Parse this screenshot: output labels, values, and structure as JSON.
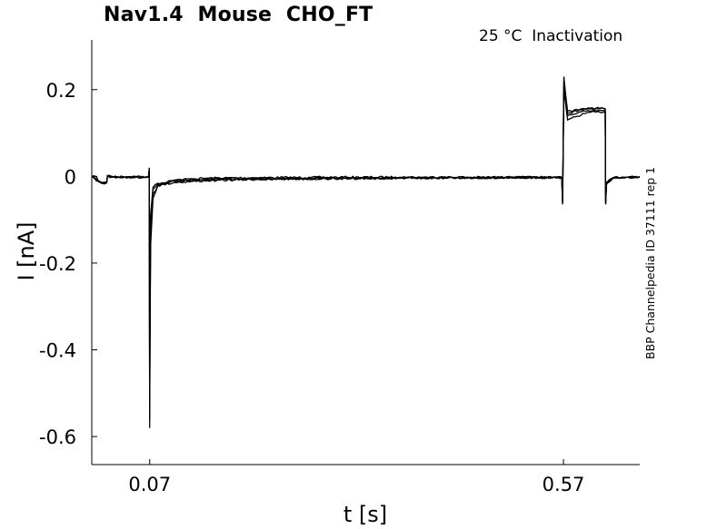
{
  "chart_data": {
    "type": "line",
    "title": "Nav1.4  Mouse  CHO_FT",
    "annotation": "25 °C  Inactivation",
    "side_note": "BBP Channelpedia ID 37111 rep 1",
    "xlabel": "t [s]",
    "ylabel": "I [nA]",
    "xlim": [
      0.0,
      0.6622
    ],
    "ylim": [
      -0.6646,
      0.3146
    ],
    "x_ticks": [
      0.07,
      0.57
    ],
    "x_tick_labels": [
      "0.07",
      "0.57"
    ],
    "y_ticks": [
      0.2,
      0,
      -0.2,
      -0.4,
      -0.6
    ],
    "y_tick_labels": [
      "0.2",
      "0",
      "-0.2",
      "-0.4",
      "-0.6"
    ],
    "grid": false,
    "box": "left-bottom",
    "line_color": "#000000",
    "series": [
      {
        "x": [
          0,
          0.006,
          0.008,
          0.012,
          0.018,
          0.019,
          0.022,
          0.04,
          0.0685,
          0.0695,
          0.07,
          0.0703,
          0.071,
          0.074,
          0.08,
          0.1,
          0.14,
          0.2,
          0.3,
          0.4,
          0.5,
          0.568,
          0.569,
          0.5705,
          0.575,
          0.6,
          0.6205,
          0.621,
          0.622,
          0.625,
          0.63,
          0.645,
          0.6622
        ],
        "values": [
          0,
          -0.002,
          -0.012,
          -0.016,
          -0.015,
          0.002,
          -0.003,
          -0.002,
          -0.002,
          0.02,
          -0.56,
          -0.42,
          -0.16,
          -0.05,
          -0.02,
          -0.008,
          -0.004,
          -0.003,
          -0.002,
          -0.002,
          -0.002,
          -0.003,
          -0.065,
          0.23,
          0.15,
          0.156,
          0.155,
          -0.065,
          -0.02,
          -0.008,
          -0.003,
          -0.002,
          -0.002
        ]
      },
      {
        "x": [
          0,
          0.008,
          0.012,
          0.018,
          0.019,
          0.04,
          0.0685,
          0.0695,
          0.07,
          0.0703,
          0.071,
          0.074,
          0.08,
          0.1,
          0.14,
          0.2,
          0.3,
          0.4,
          0.5,
          0.568,
          0.569,
          0.5705,
          0.575,
          0.6,
          0.6205,
          0.621,
          0.622,
          0.63,
          0.6622
        ],
        "values": [
          0,
          -0.01,
          -0.014,
          -0.013,
          0.001,
          -0.001,
          -0.001,
          0.015,
          -0.58,
          -0.4,
          -0.14,
          -0.04,
          -0.022,
          -0.014,
          -0.01,
          -0.007,
          -0.005,
          -0.004,
          -0.003,
          -0.003,
          -0.06,
          0.22,
          0.14,
          0.152,
          0.15,
          -0.06,
          -0.015,
          -0.004,
          -0.001
        ]
      },
      {
        "x": [
          0,
          0.008,
          0.012,
          0.018,
          0.019,
          0.04,
          0.0685,
          0.0695,
          0.07,
          0.0703,
          0.071,
          0.074,
          0.08,
          0.1,
          0.14,
          0.2,
          0.3,
          0.4,
          0.5,
          0.568,
          0.569,
          0.5705,
          0.575,
          0.6,
          0.6205,
          0.621,
          0.622,
          0.63,
          0.6622
        ],
        "values": [
          0,
          -0.011,
          -0.015,
          -0.014,
          0.0,
          -0.002,
          -0.002,
          0.018,
          -0.52,
          -0.36,
          -0.12,
          -0.03,
          -0.018,
          -0.011,
          -0.008,
          -0.006,
          -0.005,
          -0.004,
          -0.003,
          -0.003,
          -0.062,
          0.2,
          0.13,
          0.148,
          0.147,
          -0.062,
          -0.016,
          -0.004,
          -0.001
        ]
      },
      {
        "x": [
          0,
          0.008,
          0.012,
          0.018,
          0.019,
          0.04,
          0.0685,
          0.0695,
          0.07,
          0.0703,
          0.071,
          0.074,
          0.08,
          0.1,
          0.14,
          0.2,
          0.3,
          0.4,
          0.5,
          0.568,
          0.569,
          0.5705,
          0.575,
          0.6,
          0.6205,
          0.621,
          0.622,
          0.63,
          0.6622
        ],
        "values": [
          0,
          -0.012,
          -0.016,
          -0.015,
          0.001,
          -0.002,
          -0.002,
          0.016,
          -0.48,
          -0.3,
          -0.09,
          -0.025,
          -0.016,
          -0.009,
          -0.006,
          -0.005,
          -0.004,
          -0.003,
          -0.002,
          -0.002,
          -0.058,
          0.21,
          0.145,
          0.158,
          0.156,
          -0.058,
          -0.014,
          -0.003,
          -0.001
        ]
      }
    ]
  }
}
